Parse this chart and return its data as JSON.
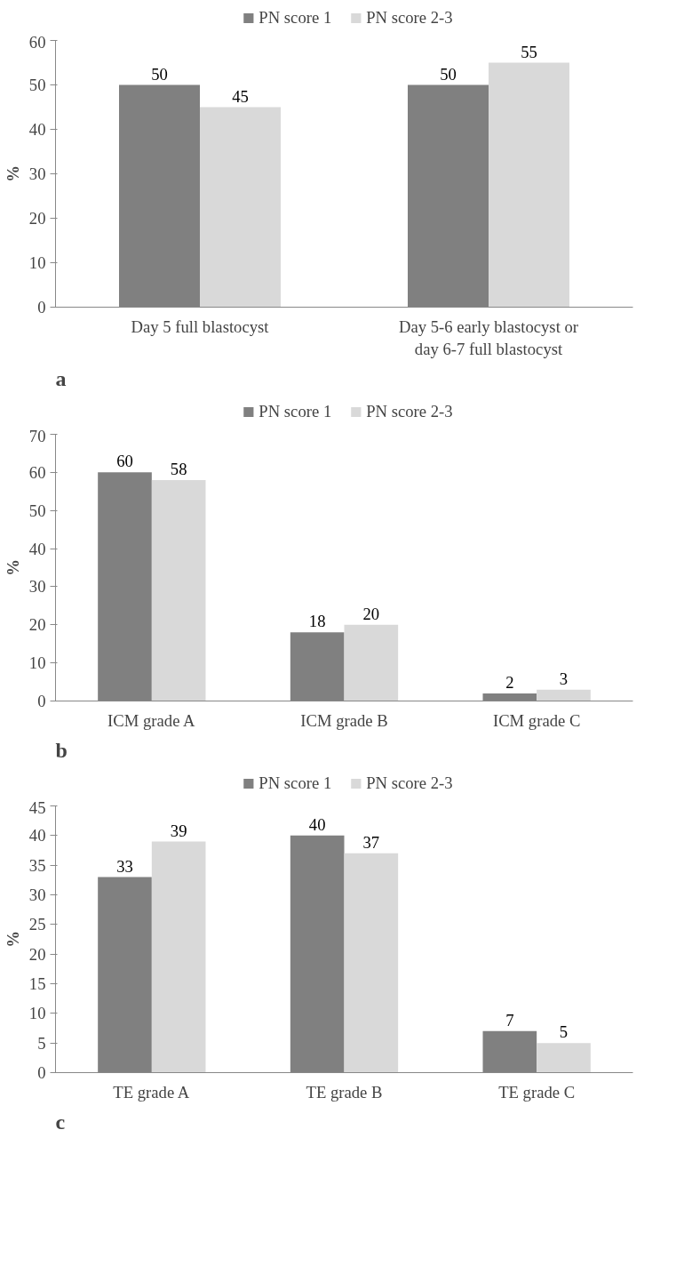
{
  "chart_data": [
    {
      "type": "bar",
      "categories": [
        "Day 5 full blastocyst",
        "Day 5-6 early blastocyst or\nday 6-7 full blastocyst"
      ],
      "series": [
        {
          "name": "PN score 1",
          "color": "#808080",
          "values": [
            50,
            50
          ]
        },
        {
          "name": "PN score 2-3",
          "color": "#d9d9d9",
          "values": [
            45,
            55
          ]
        }
      ],
      "ylabel": "%",
      "ylim": [
        0,
        60
      ],
      "yticks": [
        0,
        10,
        20,
        30,
        40,
        50,
        60
      ],
      "data_labels": true,
      "legend": "top",
      "grid": false,
      "annotations": [
        "a"
      ]
    },
    {
      "type": "bar",
      "categories": [
        "ICM grade A",
        "ICM grade B",
        "ICM grade C"
      ],
      "series": [
        {
          "name": "PN score 1",
          "color": "#808080",
          "values": [
            60,
            18,
            2
          ]
        },
        {
          "name": "PN score 2-3",
          "color": "#d9d9d9",
          "values": [
            58,
            20,
            3
          ]
        }
      ],
      "ylabel": "%",
      "ylim": [
        0,
        70
      ],
      "yticks": [
        0,
        10,
        20,
        30,
        40,
        50,
        60,
        70
      ],
      "data_labels": true,
      "legend": "top",
      "grid": false,
      "annotations": [
        "b"
      ]
    },
    {
      "type": "bar",
      "categories": [
        "TE grade A",
        "TE grade B",
        "TE grade C"
      ],
      "series": [
        {
          "name": "PN score 1",
          "color": "#808080",
          "values": [
            33,
            40,
            7
          ]
        },
        {
          "name": "PN score 2-3",
          "color": "#d9d9d9",
          "values": [
            39,
            37,
            5
          ]
        }
      ],
      "ylabel": "%",
      "ylim": [
        0,
        45
      ],
      "yticks": [
        0,
        5,
        10,
        15,
        20,
        25,
        30,
        35,
        40,
        45
      ],
      "data_labels": true,
      "legend": "top",
      "grid": false,
      "annotations": [
        "c"
      ]
    }
  ]
}
